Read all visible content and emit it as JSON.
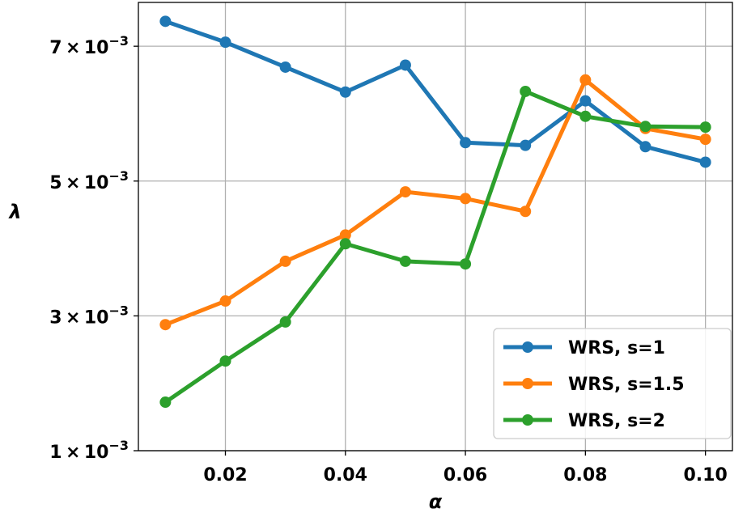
{
  "chart_data": {
    "type": "line",
    "xlabel": "α",
    "ylabel": "λ",
    "x": [
      0.01,
      0.02,
      0.03,
      0.04,
      0.05,
      0.06,
      0.07,
      0.08,
      0.09,
      0.1
    ],
    "xlim": [
      0.0055,
      0.1045
    ],
    "ylim": [
      0.001,
      0.00765
    ],
    "xticks": [
      0.02,
      0.04,
      0.06,
      0.08,
      0.1
    ],
    "xtick_labels": [
      "0.02",
      "0.04",
      "0.06",
      "0.08",
      "0.10"
    ],
    "yticks": [
      0.001,
      0.003,
      0.005,
      0.007
    ],
    "ytick_labels": [
      {
        "mant": "1",
        "exp": "−3"
      },
      {
        "mant": "3",
        "exp": "−3"
      },
      {
        "mant": "5",
        "exp": "−3"
      },
      {
        "mant": "7",
        "exp": "−3"
      }
    ],
    "grid": true,
    "legend_position": "lower-right",
    "series": [
      {
        "name": "WRS, s=1",
        "color": "#1f77b4",
        "values": [
          0.00737,
          0.00706,
          0.00669,
          0.00632,
          0.00672,
          0.00557,
          0.00553,
          0.00619,
          0.00551,
          0.00528
        ]
      },
      {
        "name": "WRS, s=1.5",
        "color": "#ff7f0e",
        "values": [
          0.00287,
          0.00322,
          0.00381,
          0.0042,
          0.00484,
          0.00474,
          0.00455,
          0.0065,
          0.00578,
          0.00562
        ]
      },
      {
        "name": "WRS, s=2",
        "color": "#2ca02c",
        "values": [
          0.00172,
          0.00233,
          0.00291,
          0.00407,
          0.00381,
          0.00377,
          0.00633,
          0.00596,
          0.00581,
          0.0058
        ]
      }
    ]
  }
}
